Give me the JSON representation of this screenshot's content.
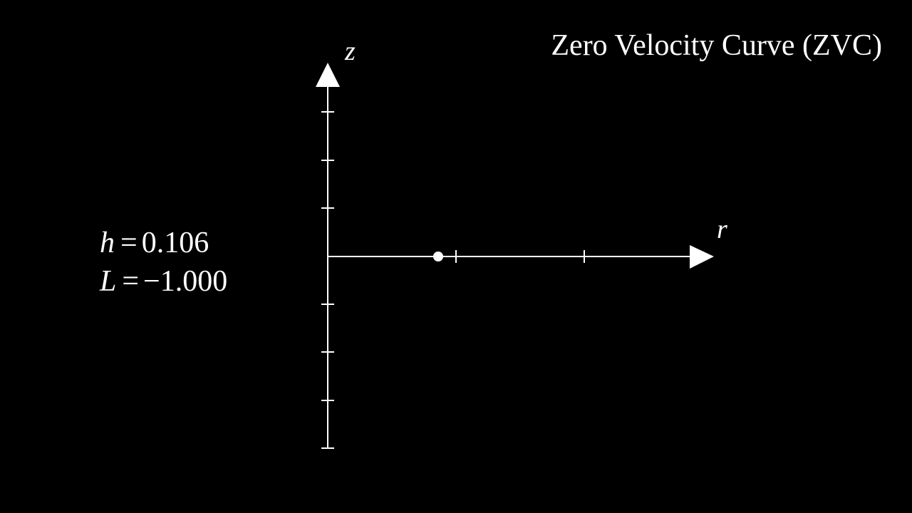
{
  "title": "Zero Velocity Curve (ZVC)",
  "params": {
    "h_symbol": "h",
    "h_value": "0.106",
    "L_symbol": "L",
    "L_value": "−1.000",
    "equals": "="
  },
  "axes": {
    "r_label": "r",
    "z_label": "z"
  },
  "colors": {
    "background": "#000000",
    "foreground": "#ffffff"
  }
}
